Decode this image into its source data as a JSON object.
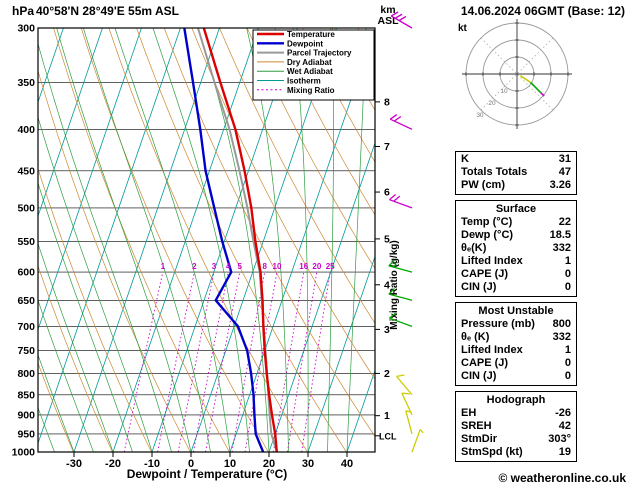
{
  "header": {
    "pressure_unit": "hPa",
    "station": "40°58'N 28°49'E 55m ASL",
    "datetime": "14.06.2024 06GMT (Base: 12)",
    "km_axis": [
      "km",
      "ASL"
    ],
    "xlabel": "Dewpoint / Temperature (°C)",
    "mixing_axis_label": "Mixing Ratio (g/kg)",
    "copyright": "© weatheronline.co.uk"
  },
  "legend": [
    {
      "label": "Temperature",
      "color": "#dd0000",
      "width": 2.4,
      "dash": ""
    },
    {
      "label": "Dewpoint",
      "color": "#0000cc",
      "width": 2.4,
      "dash": ""
    },
    {
      "label": "Parcel Trajectory",
      "color": "#999999",
      "width": 2,
      "dash": ""
    },
    {
      "label": "Dry Adiabat",
      "color": "#cc8833",
      "width": 1,
      "dash": ""
    },
    {
      "label": "Wet Adiabat",
      "color": "#2e9e40",
      "width": 1,
      "dash": ""
    },
    {
      "label": "Isotherm",
      "color": "#009999",
      "width": 1,
      "dash": ""
    },
    {
      "label": "Mixing Ratio",
      "color": "#cc00cc",
      "width": 1,
      "dash": "2,2.5"
    }
  ],
  "indices": {
    "rows": [
      [
        "K",
        "31"
      ],
      [
        "Totals Totals",
        "47"
      ],
      [
        "PW (cm)",
        "3.26"
      ]
    ]
  },
  "surface": {
    "title": "Surface",
    "rows": [
      [
        "Temp (°C)",
        "22"
      ],
      [
        "Dewp (°C)",
        "18.5"
      ],
      [
        "θₑ(K)",
        "332"
      ],
      [
        "Lifted Index",
        "1"
      ],
      [
        "CAPE (J)",
        "0"
      ],
      [
        "CIN (J)",
        "0"
      ]
    ]
  },
  "most_unstable": {
    "title": "Most Unstable",
    "rows": [
      [
        "Pressure (mb)",
        "800"
      ],
      [
        "θₑ (K)",
        "332"
      ],
      [
        "Lifted Index",
        "1"
      ],
      [
        "CAPE (J)",
        "0"
      ],
      [
        "CIN (J)",
        "0"
      ]
    ]
  },
  "hodograph_panel": {
    "title": "Hodograph",
    "rows": [
      [
        "EH",
        "-26"
      ],
      [
        "SREH",
        "42"
      ],
      [
        "StmDir",
        "303°"
      ],
      [
        "StmSpd (kt)",
        "19"
      ]
    ]
  },
  "chart_data": {
    "type": "skewt-logp",
    "title": "40°58'N 28°49'E 55m ASL",
    "pressure_axis": {
      "unit": "hPa",
      "scale": "log",
      "range": [
        300,
        1000
      ],
      "ticks": [
        300,
        350,
        400,
        450,
        500,
        550,
        600,
        650,
        700,
        750,
        800,
        850,
        900,
        950,
        1000
      ]
    },
    "temp_axis": {
      "unit": "°C",
      "label": "Dewpoint / Temperature (°C)",
      "ticks": [
        -30,
        -20,
        -10,
        0,
        10,
        20,
        30,
        40
      ]
    },
    "km_axis": {
      "label": "km ASL",
      "ticks": [
        {
          "km": 8,
          "p": 370
        },
        {
          "km": 7,
          "p": 420
        },
        {
          "km": 6,
          "p": 478
        },
        {
          "km": 5,
          "p": 546
        },
        {
          "km": 4,
          "p": 622
        },
        {
          "km": 3,
          "p": 706
        },
        {
          "km": 2,
          "p": 800
        },
        {
          "km": 1,
          "p": 902
        }
      ]
    },
    "lcl": {
      "label": "LCL",
      "p": 955
    },
    "mixing_ratio_lines": {
      "values": [
        1,
        2,
        3,
        4,
        5,
        8,
        10,
        16,
        20,
        25
      ],
      "top_p": 600
    },
    "isotherms": {
      "min": -120,
      "max": 40,
      "step": 10
    },
    "dry_adiabats_thetaK": {
      "min": 233,
      "max": 433,
      "step": 10
    },
    "wet_adiabats_T0": [
      -40,
      -35,
      -30,
      -25,
      -20,
      -15,
      -10,
      -5,
      0,
      5,
      10,
      15,
      20,
      25,
      30,
      35,
      40
    ],
    "sounding": {
      "pressure": [
        1000,
        950,
        900,
        850,
        800,
        750,
        700,
        650,
        600,
        550,
        500,
        450,
        400,
        350,
        300
      ],
      "temperature": [
        22,
        20,
        17.5,
        15,
        12.5,
        10,
        7.5,
        5,
        2,
        -2,
        -6,
        -11,
        -17,
        -25,
        -34
      ],
      "dewpoint": [
        18.5,
        15,
        13,
        11,
        8.5,
        5.5,
        1,
        -7,
        -5.5,
        -10.5,
        -15.5,
        -21,
        -26,
        -32,
        -39
      ],
      "parcel": [
        22,
        19,
        16.9,
        14.8,
        12.6,
        10.2,
        7.6,
        4.8,
        1.8,
        -2.5,
        -7,
        -12.3,
        -18.5,
        -26.5,
        -35.5
      ]
    },
    "wind_barbs": [
      {
        "p": 300,
        "dir": 300,
        "spd": 30,
        "color": "#cc00cc"
      },
      {
        "p": 400,
        "dir": 295,
        "spd": 20,
        "color": "#cc00cc"
      },
      {
        "p": 500,
        "dir": 290,
        "spd": 20,
        "color": "#cc00cc"
      },
      {
        "p": 600,
        "dir": 285,
        "spd": 15,
        "color": "#00aa00"
      },
      {
        "p": 650,
        "dir": 285,
        "spd": 10,
        "color": "#00aa00"
      },
      {
        "p": 700,
        "dir": 290,
        "spd": 10,
        "color": "#00aa00"
      },
      {
        "p": 850,
        "dir": 320,
        "spd": 10,
        "color": "#cccc00"
      },
      {
        "p": 900,
        "dir": 335,
        "spd": 10,
        "color": "#cccc00"
      },
      {
        "p": 950,
        "dir": 345,
        "spd": 5,
        "color": "#cccc00"
      },
      {
        "p": 1000,
        "dir": 20,
        "spd": 5,
        "color": "#cccc00"
      }
    ],
    "hodograph": {
      "unit": "kt",
      "ring_step_kt": 10,
      "rings": [
        10,
        20,
        30
      ],
      "trace_uv": [
        [
          2,
          -1
        ],
        [
          5,
          -3
        ],
        [
          8,
          -5
        ],
        [
          11,
          -8
        ],
        [
          14,
          -11
        ],
        [
          16,
          -13
        ]
      ],
      "trace_colors": [
        "#cccc00",
        "#00aa00",
        "#cc00cc"
      ]
    },
    "colors": {
      "temperature": "#dd0000",
      "dewpoint": "#0000cc",
      "parcel": "#999999",
      "dry_adiabat": "#cc8833",
      "wet_adiabat": "#2e9e40",
      "isotherm": "#009999",
      "mixing_ratio": "#cc00cc",
      "grid": "#000000"
    }
  }
}
